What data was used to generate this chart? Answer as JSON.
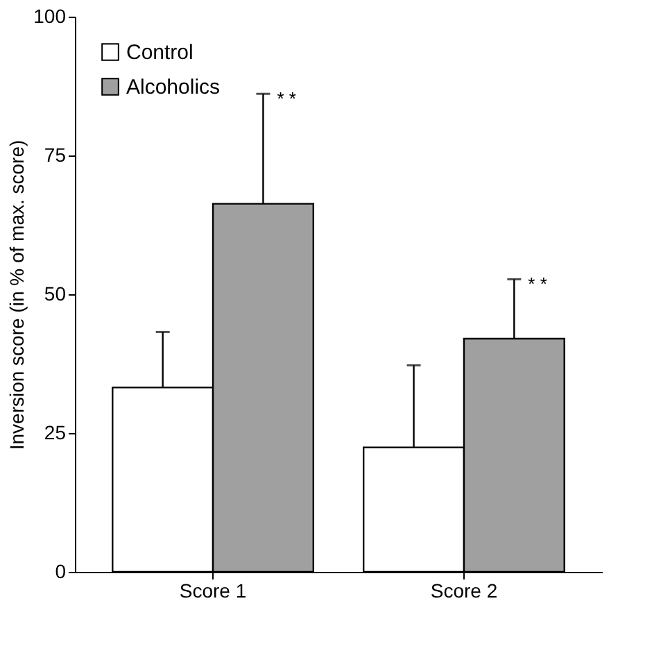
{
  "chart_data": {
    "type": "bar",
    "ylabel": "Inversion score (in % of max. score)",
    "categories": [
      "Score 1",
      "Score 2"
    ],
    "series": [
      {
        "name": "Control",
        "color": "#ffffff",
        "values": [
          33.2,
          22.4
        ],
        "errors": [
          [
            33.2,
            43.2
          ],
          [
            22.4,
            37.2
          ]
        ]
      },
      {
        "name": "Alcoholics",
        "color": "#a0a0a0",
        "values": [
          66.3,
          42.0
        ],
        "errors": [
          [
            66.3,
            86.1
          ],
          [
            42.0,
            52.7
          ]
        ]
      }
    ],
    "ylim": [
      0,
      100
    ],
    "yticks": [
      0,
      25,
      50,
      75,
      100
    ],
    "grid": false,
    "legend": "top left",
    "annotations": [
      "* *",
      "* *"
    ]
  }
}
